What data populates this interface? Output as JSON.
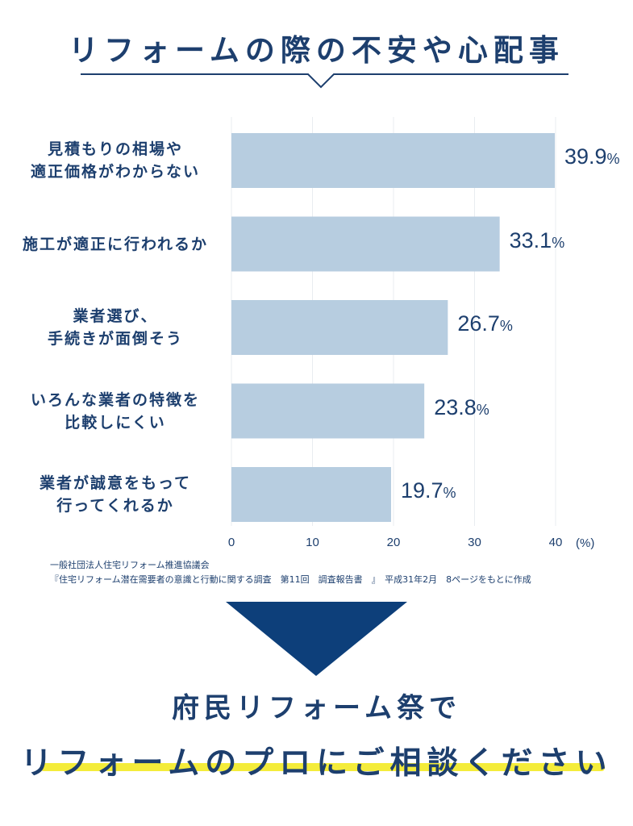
{
  "title": "リフォームの際の不安や心配事",
  "chart_data": {
    "type": "bar",
    "orientation": "horizontal",
    "categories": [
      [
        "見積もりの相場や",
        "適正価格がわからない"
      ],
      [
        "施工が適正に行われるか"
      ],
      [
        "業者選び、",
        "手続きが面倒そう"
      ],
      [
        "いろんな業者の特徴を",
        "比較しにくい"
      ],
      [
        "業者が誠意をもって",
        "行ってくれるか"
      ]
    ],
    "values": [
      39.9,
      33.1,
      26.7,
      23.8,
      19.7
    ],
    "value_labels": [
      "39.9",
      "33.1",
      "26.7",
      "23.8",
      "19.7"
    ],
    "value_suffix": "%",
    "xlim": [
      0,
      40
    ],
    "xticks": [
      "0",
      "10",
      "20",
      "30",
      "40"
    ],
    "xunit": "(%)",
    "bar_color": "#b7cde0",
    "grid": true
  },
  "source": {
    "line1": "一般社団法人住宅リフォーム推進協議会",
    "line2": "『住宅リフォーム潜在需要者の意識と行動に関する調査　第11回　調査報告書　』　平成31年2月　8ページをもとに作成"
  },
  "cta": {
    "line1": "府民リフォーム祭で",
    "line2": "リフォームのプロにご相談ください"
  },
  "colors": {
    "navy": "#1d3f6e",
    "arrow": "#0d3f7a",
    "highlight": "#f4ec3a"
  }
}
